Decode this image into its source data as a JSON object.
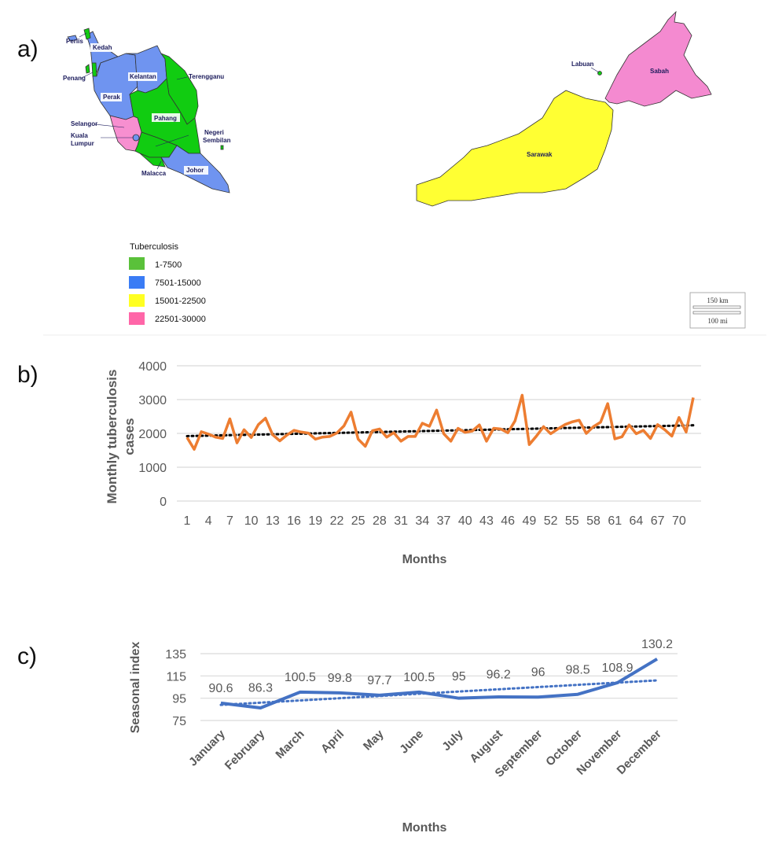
{
  "panel_labels": {
    "a": "a)",
    "b": "b)",
    "c": "c)"
  },
  "map": {
    "regions": {
      "perlis": "Perlis",
      "kedah": "Kedah",
      "penang": "Penang",
      "kelantan": "Kelantan",
      "terengganu": "Terengganu",
      "perak": "Perak",
      "pahang": "Pahang",
      "selangor": "Selangor",
      "kl1": "Kuala",
      "kl2": "Lumpur",
      "ns1": "Negeri",
      "ns2": "Sembilan",
      "malacca": "Malacca",
      "johor": "Johor",
      "labuan": "Labuan",
      "sabah": "Sabah",
      "sarawak": "Sarawak"
    },
    "legend": {
      "title": "Tuberculosis",
      "items": [
        {
          "label": "1-7500",
          "color": "#5ac13a"
        },
        {
          "label": "7501-15000",
          "color": "#3a7cf5"
        },
        {
          "label": "15001-22500",
          "color": "#ffff22"
        },
        {
          "label": "22501-30000",
          "color": "#ff66a8"
        }
      ]
    },
    "scale": {
      "km": "150 km",
      "mi": "100 mi"
    }
  },
  "chart_data": [
    {
      "type": "line",
      "xlabel": "Months",
      "ylabel": "Monthly tuberculosis cases",
      "ylim": [
        0,
        4000
      ],
      "yticks": [
        0,
        1000,
        2000,
        3000,
        4000
      ],
      "xticks": [
        1,
        4,
        7,
        10,
        13,
        16,
        19,
        22,
        25,
        28,
        31,
        34,
        37,
        40,
        43,
        46,
        49,
        52,
        55,
        58,
        61,
        64,
        67,
        70
      ],
      "grid": true,
      "series": [
        {
          "color": "#ed7d31",
          "x_start": 1,
          "values": [
            1880,
            1530,
            2050,
            1980,
            1890,
            1850,
            2430,
            1720,
            2110,
            1880,
            2260,
            2450,
            1960,
            1780,
            1950,
            2090,
            2040,
            2010,
            1830,
            1890,
            1910,
            2010,
            2220,
            2630,
            1830,
            1620,
            2080,
            2130,
            1890,
            2020,
            1770,
            1910,
            1910,
            2300,
            2210,
            2690,
            1990,
            1770,
            2150,
            2030,
            2070,
            2250,
            1770,
            2150,
            2130,
            2020,
            2370,
            3130,
            1670,
            1920,
            2200,
            1990,
            2130,
            2260,
            2340,
            2390,
            2000,
            2200,
            2330,
            2880,
            1840,
            1900,
            2250,
            1990,
            2090,
            1850,
            2260,
            2110,
            1920,
            2470,
            2040,
            3060
          ]
        }
      ],
      "trendline": {
        "style": "dotted",
        "color": "#000000",
        "start": 1920,
        "end": 2240
      }
    },
    {
      "type": "line",
      "xlabel": "Months",
      "ylabel": "Seasonal index",
      "ylim": [
        75,
        135
      ],
      "yticks": [
        75,
        95,
        115,
        135
      ],
      "grid": true,
      "categories": [
        "January",
        "February",
        "March",
        "April",
        "May",
        "June",
        "July",
        "August",
        "September",
        "October",
        "November",
        "December"
      ],
      "series": [
        {
          "color": "#4472c4",
          "values": [
            90.6,
            86.3,
            100.5,
            99.8,
            97.7,
            100.5,
            95,
            96.2,
            96,
            98.5,
            108.9,
            130.2
          ],
          "data_labels": [
            "90.6",
            "86.3",
            "100.5",
            "99.8",
            "97.7",
            "100.5",
            "95",
            "96.2",
            "96",
            "98.5",
            "108.9",
            "130.2"
          ]
        }
      ],
      "trendline": {
        "style": "dotted",
        "color": "#4472c4",
        "start": 89,
        "end": 111
      }
    }
  ]
}
